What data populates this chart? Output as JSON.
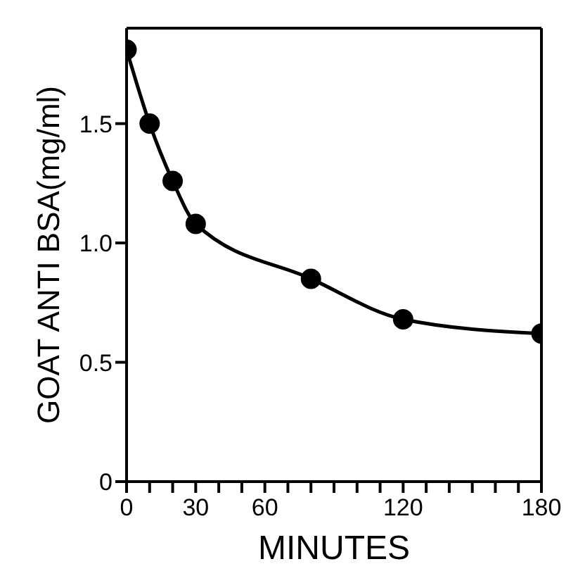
{
  "chart_data": {
    "type": "line",
    "xlabel": "MINUTES",
    "ylabel": "GOAT ANTI BSA(mg/ml)",
    "x": [
      0,
      10,
      20,
      30,
      80,
      120,
      180
    ],
    "series": [
      {
        "color": "#000000",
        "values": [
          1.81,
          1.5,
          1.26,
          1.08,
          0.85,
          0.68,
          0.62
        ]
      }
    ],
    "xlim": [
      0,
      180
    ],
    "ylim": [
      0,
      1.9
    ],
    "xticks": [
      0,
      {
        "value": 10,
        "label": null
      },
      {
        "value": 20,
        "label": null
      },
      30,
      {
        "value": 40,
        "label": null
      },
      {
        "value": 50,
        "label": null
      },
      60,
      {
        "value": 70,
        "label": null
      },
      {
        "value": 80,
        "label": null
      },
      {
        "value": 90,
        "label": null
      },
      {
        "value": 100,
        "label": null
      },
      {
        "value": 110,
        "label": null
      },
      120,
      {
        "value": 130,
        "label": null
      },
      {
        "value": 140,
        "label": null
      },
      {
        "value": 150,
        "label": null
      },
      {
        "value": 160,
        "label": null
      },
      {
        "value": 170,
        "label": null
      },
      180
    ],
    "yticks": [
      {
        "value": 0,
        "label": "0"
      },
      {
        "value": 0.5,
        "label": "0.5"
      },
      {
        "value": 1,
        "label": "1.0"
      },
      {
        "value": 1.5,
        "label": "1.5"
      }
    ],
    "marker": "circle",
    "line_style": "solid",
    "grid": false,
    "legend": false
  }
}
